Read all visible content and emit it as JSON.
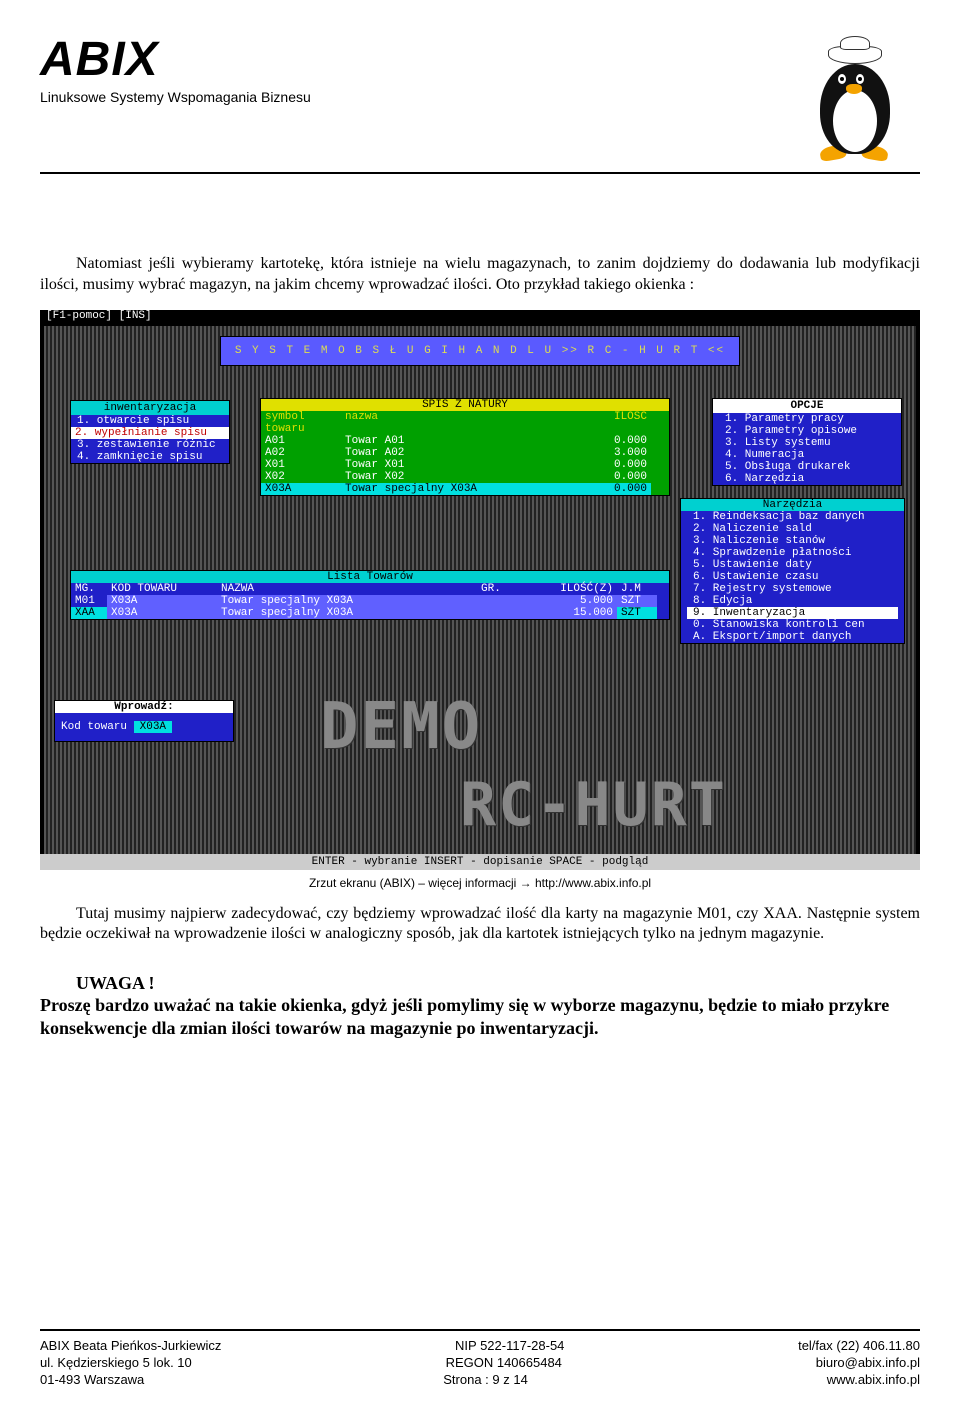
{
  "brand": {
    "name": "ABIX",
    "tagline": "Linuksowe Systemy Wspomagania Biznesu"
  },
  "intro": "Natomiast jeśli wybieramy kartotekę, która istnieje na wielu magazynach, to zanim dojdziemy do dodawania lub modyfikacji ilości, musimy wybrać magazyn, na jakim chcemy wprowadzać ilości. Oto przykład takiego okienka :",
  "term": {
    "top_status": "[F1-pomoc]  [INS]",
    "banner": "S Y S T E M   O B S Ł U G I   H A N D L U   >>   R C - H U R T  <<",
    "inv_menu": {
      "title": "inwentaryzacja",
      "items": [
        "1. otwarcie spisu",
        "2. wypełnianie spisu",
        "3. zestawienie różnic",
        "4. zamknięcie spisu"
      ],
      "selected_index": 1
    },
    "spis": {
      "title": "SPIS Z NATURY",
      "cols": [
        "symbol towaru",
        "nazwa",
        "ILOŚĆ"
      ],
      "rows": [
        [
          "A01",
          "Towar A01",
          "0.000"
        ],
        [
          "A02",
          "Towar A02",
          "3.000"
        ],
        [
          "X01",
          "Towar X01",
          "0.000"
        ],
        [
          "X02",
          "Towar X02",
          "0.000"
        ],
        [
          "X03A",
          "Towar specjalny X03A",
          "0.000"
        ]
      ],
      "selected_index": 4
    },
    "opcje": {
      "title": "OPCJE",
      "items": [
        "1. Parametry pracy",
        "2. Parametry opisowe",
        "3. Listy systemu",
        "4. Numeracja",
        "5. Obsługa drukarek",
        "6. Narzędzia"
      ]
    },
    "narz": {
      "title": "Narzędzia",
      "items": [
        "1. Reindeksacja baz danych",
        "2. Naliczenie sald",
        "3. Naliczenie stanów",
        "4. Sprawdzenie płatności",
        "5. Ustawienie daty",
        "6. Ustawienie czasu",
        "7. Rejestry systemowe",
        "8. Edycja",
        "9. Inwentaryzacja",
        "0. Stanowiska kontroli cen",
        "A. Eksport/import danych"
      ],
      "selected_index": 8
    },
    "lista": {
      "title": "Lista Towarów",
      "cols": [
        "MG.",
        "KOD TOWARU",
        "NAZWA",
        "GR.",
        "ILOŚĆ(Z)",
        "J.M"
      ],
      "rows": [
        [
          "M01",
          "X03A",
          "Towar specjalny X03A",
          "",
          "5.000",
          "SZT"
        ],
        [
          "XAA",
          "X03A",
          "Towar specjalny X03A",
          "",
          "15.000",
          "SZT"
        ]
      ]
    },
    "wprow": {
      "title": "Wprowadź:",
      "label": "Kod towaru",
      "value": "X03A"
    },
    "watermark1": "DEMO",
    "watermark2": "RC-HURT",
    "bottom_status": "ENTER - wybranie    INSERT - dopisanie    SPACE - podgląd"
  },
  "caption": "Zrzut ekranu (ABIX) – więcej informacji → http://www.abix.info.pl",
  "para2a": "Tutaj musimy najpierw zadecydować, czy będziemy wprowadzać ilość dla karty na magazynie M01, czy XAA. Następnie system będzie oczekiwał na wprowadzenie ilości w analogiczny sposób, jak dla kartotek istniejących tylko na jednym magazynie.",
  "uwaga_h": "UWAGA !",
  "uwaga_p": "Proszę bardzo uważać na takie okienka, gdyż jeśli pomylimy się w wyborze magazynu, będzie to miało przykre konsekwencje dla zmian ilości towarów na magazynie po inwentaryzacji.",
  "footer": {
    "rows": [
      [
        "ABIX Beata Pieńkos-Jurkiewicz",
        "NIP 522-117-28-54",
        "tel/fax (22) 406.11.80"
      ],
      [
        "ul. Kędzierskiego 5 lok. 10",
        "REGON 140665484",
        "biuro@abix.info.pl"
      ],
      [
        "01-493 Warszawa",
        "Strona : 9 z 14",
        "www.abix.info.pl"
      ]
    ]
  },
  "colors": {
    "term_bg": "#000000",
    "menu_bg": "#2020c8",
    "menu_title": "#00d0d0",
    "green_bg": "#00a000",
    "yellow": "#e0e000",
    "cyan_sel": "#00e0e0",
    "white": "#ffffff"
  }
}
